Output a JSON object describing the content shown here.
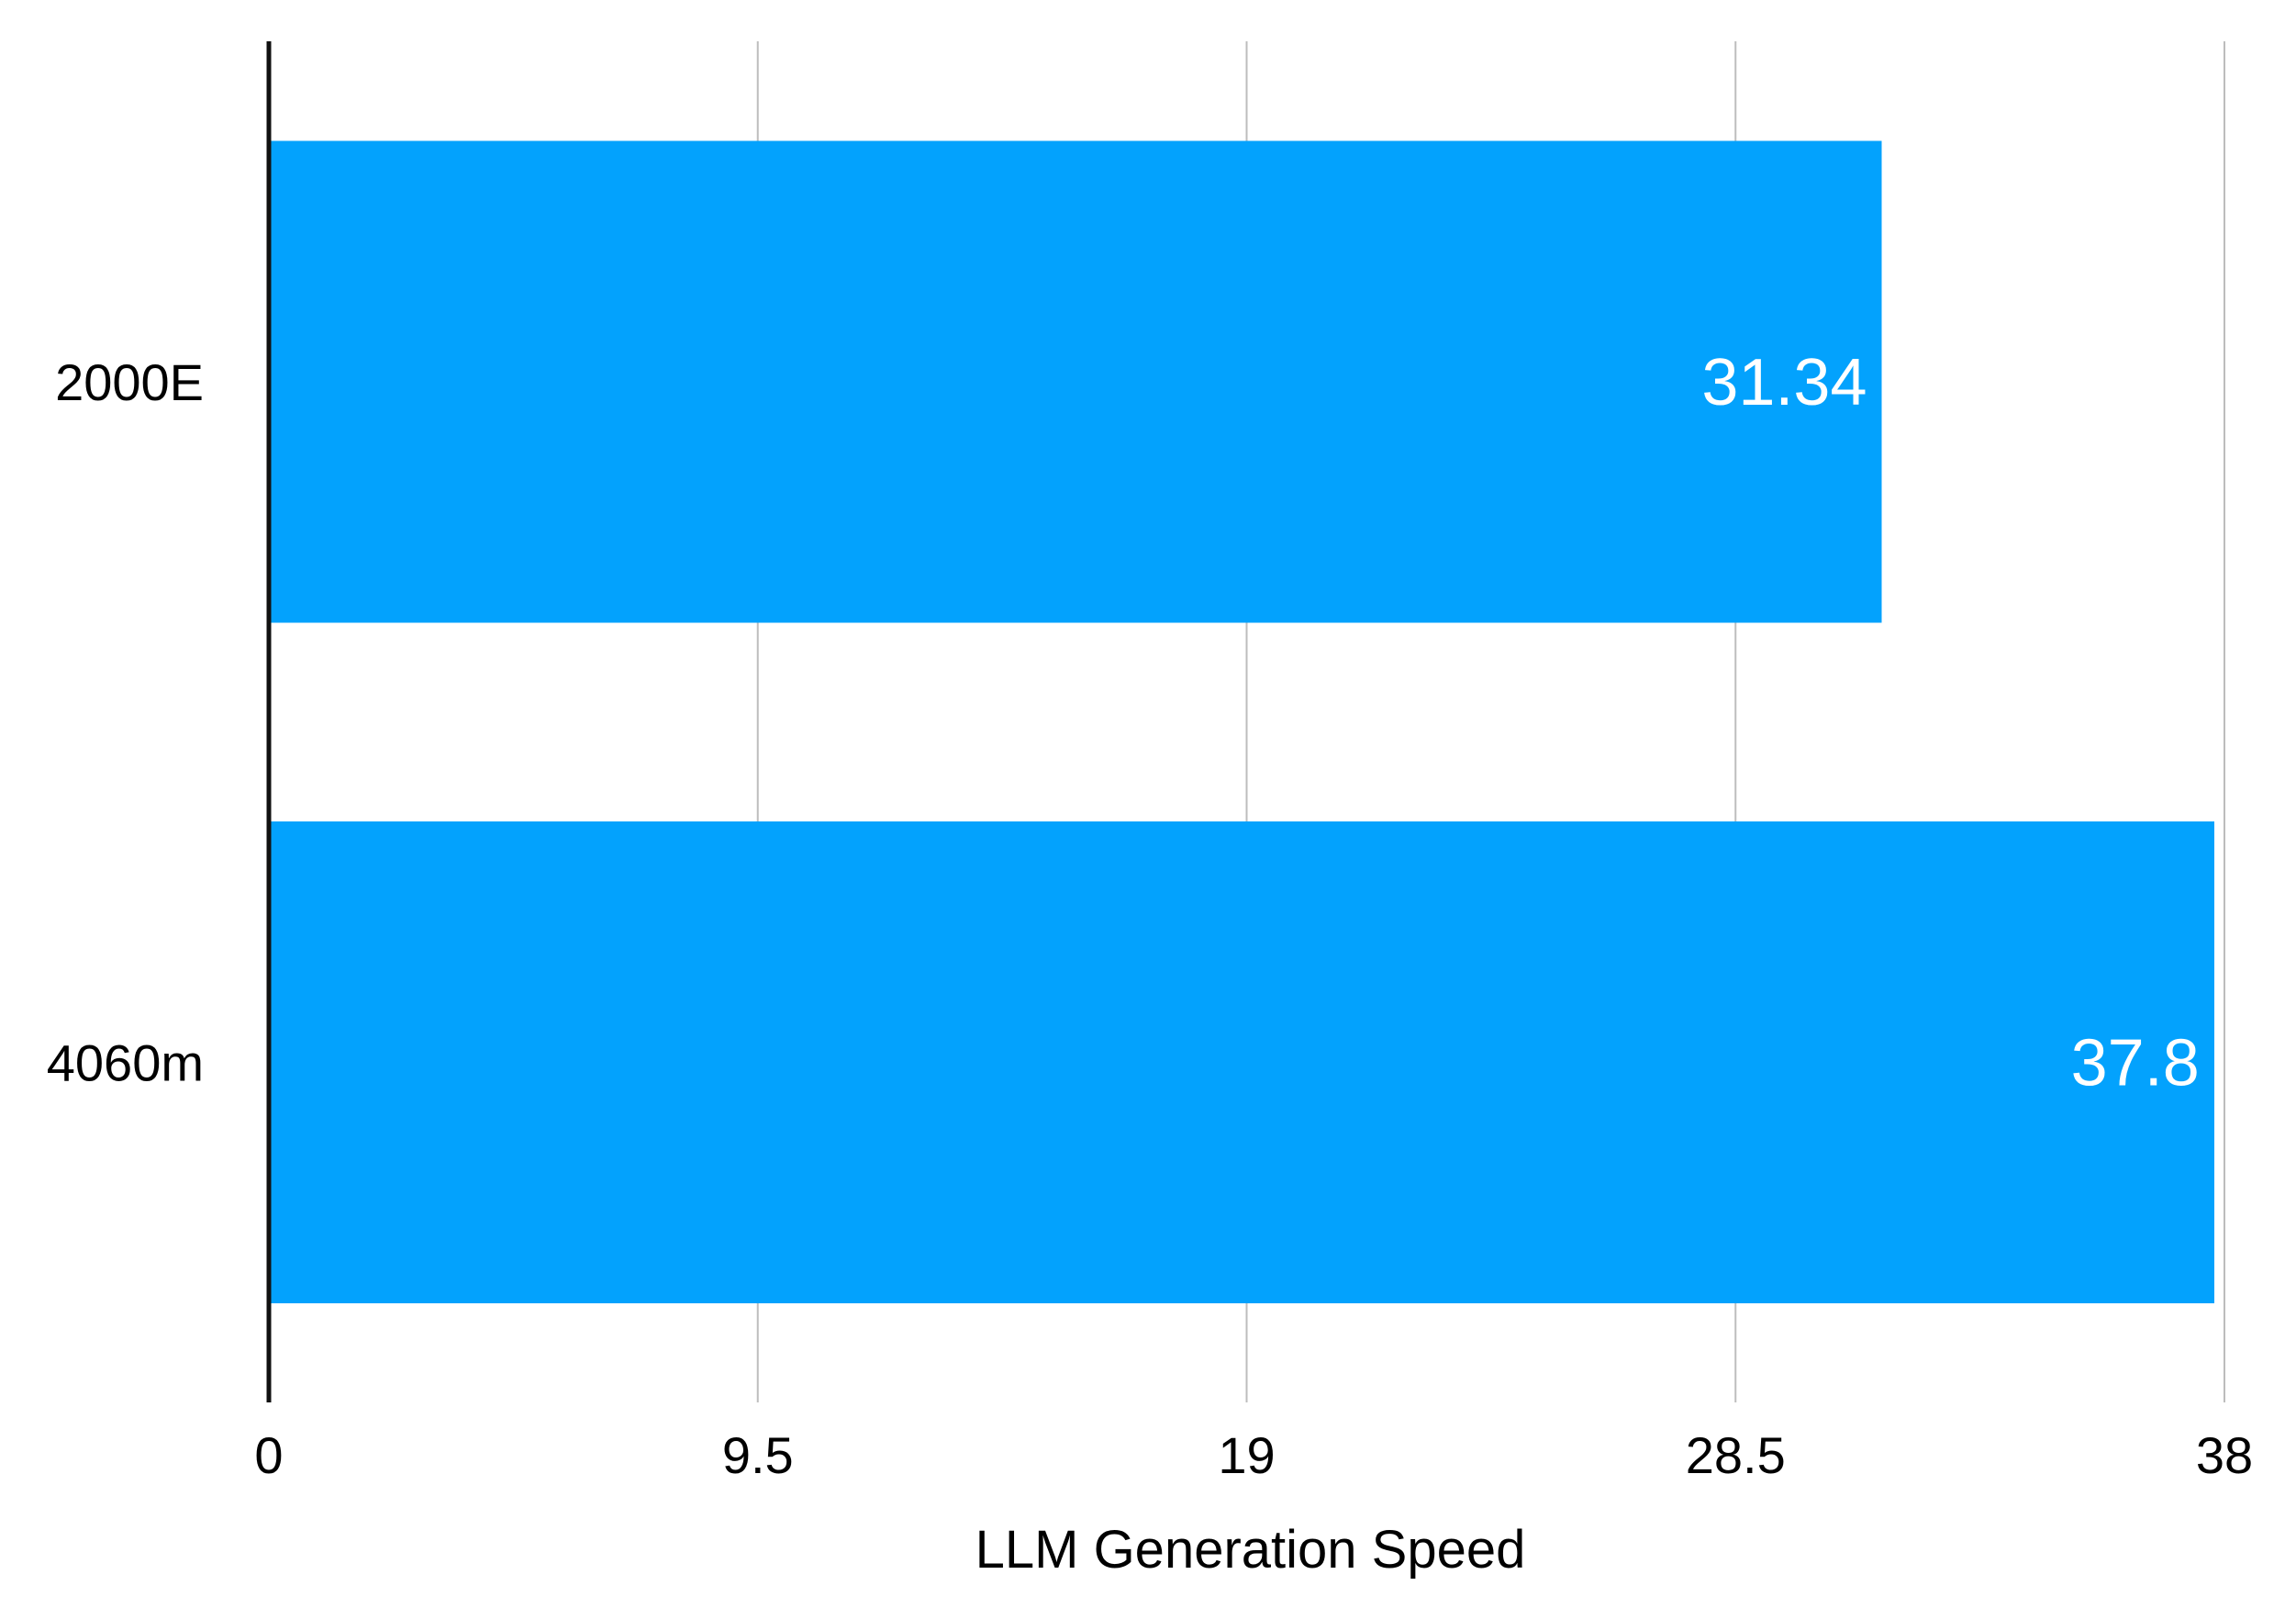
{
  "chart_data": {
    "type": "bar",
    "orientation": "horizontal",
    "categories": [
      "2000E",
      "4060m"
    ],
    "values": [
      31.34,
      37.8
    ],
    "data_labels": [
      "31.34",
      "37.8"
    ],
    "title": "",
    "xlabel": "LLM Generation Speed",
    "ylabel": "",
    "xlim": [
      0,
      38
    ],
    "ticks": [
      "0",
      "9.5",
      "19",
      "28.5",
      "38"
    ],
    "grid": true,
    "legend": "none",
    "colors": {
      "bar": "#03a2fd",
      "grid": "#bdbdbd",
      "axis": "#111111",
      "data_label": "#ffffff"
    }
  }
}
